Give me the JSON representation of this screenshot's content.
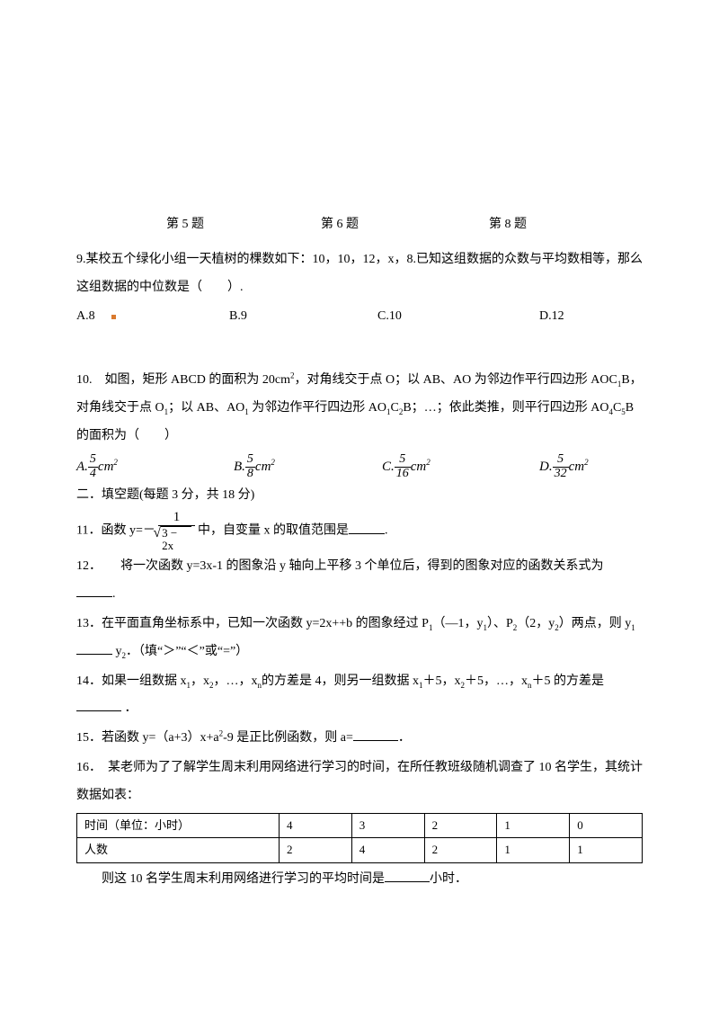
{
  "rowLabels": {
    "l5": "第 5 题",
    "l6": "第 6 题",
    "l8": "第 8 题"
  },
  "q9": {
    "text": "9.某校五个绿化小组一天植树的棵数如下：10，10，12，x，8.已知这组数据的众数与平均数相等，那么这组数据的中位数是（　　）.",
    "a": "A.8",
    "b": "B.9",
    "c": "C.10",
    "d": "D.12"
  },
  "q10": {
    "line1_pre": "10.　如图，矩形 ABCD 的面积为 20cm",
    "line1_post": "，对角线交于点 O；以 AB、AO 为邻边作平行四边形 AOC",
    "line1_tail": "B，对角线交于点 O",
    "line2_a": "；以 AB、AO",
    "line2_b": " 为邻边作平行四边形 AO",
    "line2_c": "C",
    "line2_d": "B；…；依此类推，则平行四边形 AO",
    "line2_e": "C",
    "line2_f": "B 的面积为（　　）",
    "optA": "A.",
    "fracA_n": "5",
    "fracA_d": "4",
    "optB": "B.",
    "fracB_n": "5",
    "fracB_d": "8",
    "optC": "C.",
    "fracC_n": "5",
    "fracC_d": "16",
    "optD": "D.",
    "fracD_n": "5",
    "fracD_d": "32",
    "cm2": "cm",
    "sq": "2"
  },
  "section2": "二．填空题(每题 3 分，共 18 分)",
  "q11": {
    "pre": "11．函数 y=－",
    "num": "1",
    "rad": "3 − 2x",
    "post": " 中，自变量 x 的取值范围是",
    "tail": "."
  },
  "q12": {
    "line1": "12．　　将一次函数 y=3x-1 的图象沿 y 轴向上平移 3 个单位后，得到的图象对应的函数关系式为",
    "tail": "."
  },
  "q13": {
    "line1_a": "13．在平面直角坐标系中，已知一次函数 y=2x++b 的图象经过 P",
    "line1_b": "（—1，y",
    "line1_c": "）、P",
    "line1_d": "（2，y",
    "line1_e": "）两点，则 y",
    "line2_a": " y",
    "line2_b": "．（填“＞”“＜”或“=”）"
  },
  "q14": {
    "pre": "14．如果一组数据 x",
    "mid1": "，x",
    "mid2": "，…，x",
    "mid3": "的方差是 4，则另一组数据 x",
    "mid4": "＋5，x",
    "mid5": "＋5，…，x",
    "mid6": "＋5 的方差是",
    "tail": " ．"
  },
  "q15": {
    "pre": "15．若函数 y=（a+3）x+a",
    "mid": "-9 是正比例函数，则 a=",
    "tail": "．"
  },
  "q16": {
    "line1": "16．　某老师为了了解学生周末利用网络进行学习的时间，在所任教班级随机调查了 10 名学生，其统计数据如表：",
    "head_time": "时间（单位：小时）",
    "head_count": "人数",
    "times": [
      "4",
      "3",
      "2",
      "1",
      "0"
    ],
    "counts": [
      "2",
      "4",
      "2",
      "1",
      "1"
    ],
    "line2_pre": "则这 10 名学生周末利用网络进行学习的平均时间是",
    "line2_post": "小时．"
  }
}
